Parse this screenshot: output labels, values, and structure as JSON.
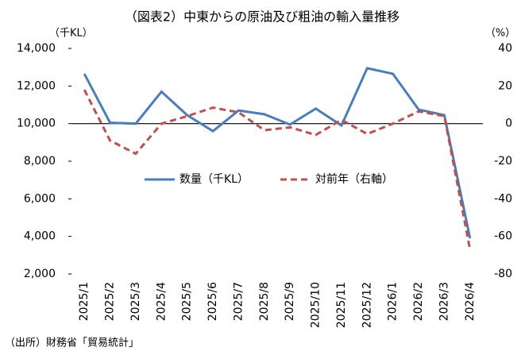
{
  "chart_data": {
    "type": "line",
    "title": "（図表2）中東からの原油及び粗油の輸入量推移",
    "y_label": "（千KL）",
    "y2_label": "（%）",
    "source": "（出所）財務省「貿易統計」",
    "categories": [
      "2025/1",
      "2025/2",
      "2025/3",
      "2025/4",
      "2025/5",
      "2025/6",
      "2025/7",
      "2025/8",
      "2025/9",
      "2025/10",
      "2025/11",
      "2025/12",
      "2026/1",
      "2026/2",
      "2026/3",
      "2026/4"
    ],
    "series": [
      {
        "name": "数量（千KL）",
        "color": "#4a7ebb",
        "dash": false,
        "axis": "y",
        "values": [
          12650,
          10050,
          10000,
          11700,
          10450,
          9600,
          10700,
          10500,
          9950,
          10800,
          9900,
          12950,
          12650,
          10750,
          10450,
          3900
        ]
      },
      {
        "name": "対前年（右軸）",
        "color": "#c0504d",
        "dash": true,
        "axis": "y2",
        "values": [
          18,
          -9,
          -16,
          0,
          4,
          8.5,
          6,
          -3.5,
          -2,
          -6,
          2,
          -5.5,
          0,
          6.5,
          4,
          -67
        ]
      }
    ],
    "ylim": [
      2000,
      14000
    ],
    "yticks": [
      {
        "value": 2000,
        "label": "2,000"
      },
      {
        "value": 4000,
        "label": "4,000"
      },
      {
        "value": 6000,
        "label": "6,000"
      },
      {
        "value": 8000,
        "label": "8,000"
      },
      {
        "value": 10000,
        "label": "10,000"
      },
      {
        "value": 12000,
        "label": "12,000"
      },
      {
        "value": 14000,
        "label": "14,000"
      }
    ],
    "y2lim": [
      -80,
      40
    ],
    "y2ticks": [
      -80,
      -60,
      -40,
      -20,
      0,
      20,
      40
    ],
    "grid": false,
    "legend": "center"
  }
}
